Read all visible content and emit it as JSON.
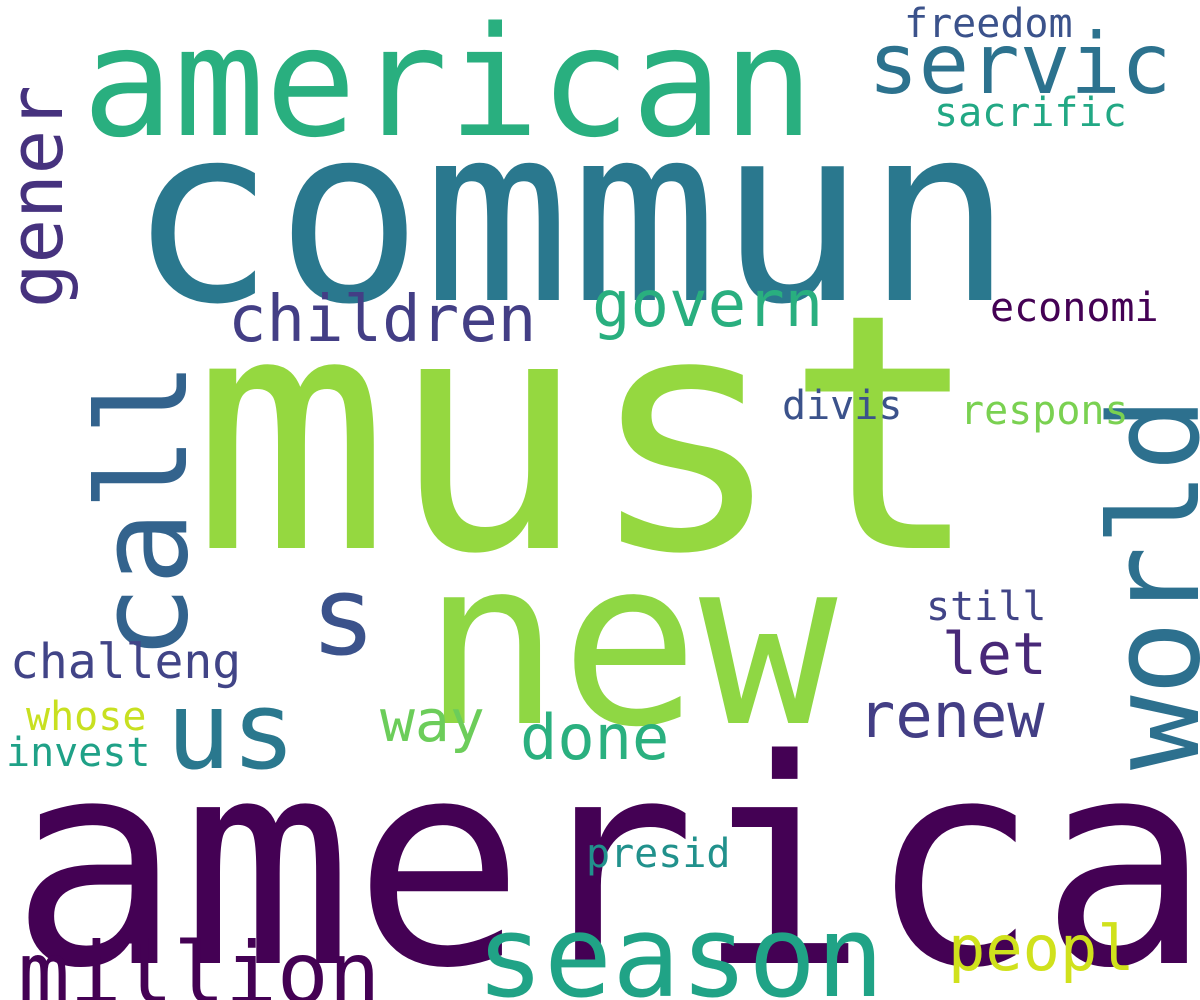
{
  "background": "#ffffff",
  "words": [
    {
      "key": "america",
      "text": "america",
      "color": "#440154",
      "orientation": "horizontal"
    },
    {
      "key": "must",
      "text": "must",
      "color": "#95d840",
      "orientation": "horizontal"
    },
    {
      "key": "commun",
      "text": "commun",
      "color": "#2a788e",
      "orientation": "horizontal"
    },
    {
      "key": "new",
      "text": "new",
      "color": "#8fd744",
      "orientation": "horizontal"
    },
    {
      "key": "american",
      "text": "american",
      "color": "#29af7f",
      "orientation": "horizontal"
    },
    {
      "key": "season",
      "text": "season",
      "color": "#20a386",
      "orientation": "horizontal"
    },
    {
      "key": "call",
      "text": "call",
      "color": "#33638d",
      "orientation": "vertical"
    },
    {
      "key": "world",
      "text": "world",
      "color": "#2d708e",
      "orientation": "vertical"
    },
    {
      "key": "million",
      "text": "million",
      "color": "#440154",
      "orientation": "horizontal"
    },
    {
      "key": "us",
      "text": "us",
      "color": "#2a788e",
      "orientation": "horizontal"
    },
    {
      "key": "s",
      "text": "s",
      "color": "#3b528b",
      "orientation": "horizontal"
    },
    {
      "key": "servic",
      "text": "servic",
      "color": "#2c728e",
      "orientation": "horizontal"
    },
    {
      "key": "gener",
      "text": "gener",
      "color": "#46327e",
      "orientation": "vertical"
    },
    {
      "key": "children",
      "text": "children",
      "color": "#433e85",
      "orientation": "horizontal"
    },
    {
      "key": "govern",
      "text": "govern",
      "color": "#29af7f",
      "orientation": "horizontal"
    },
    {
      "key": "done",
      "text": "done",
      "color": "#2ab07f",
      "orientation": "horizontal"
    },
    {
      "key": "renew",
      "text": "renew",
      "color": "#433e85",
      "orientation": "horizontal"
    },
    {
      "key": "peopl",
      "text": "peopl",
      "color": "#d0e11c",
      "orientation": "horizontal"
    },
    {
      "key": "way",
      "text": "way",
      "color": "#6ccd5a",
      "orientation": "horizontal"
    },
    {
      "key": "let",
      "text": "let",
      "color": "#482878",
      "orientation": "horizontal"
    },
    {
      "key": "challeng",
      "text": "challeng",
      "color": "#414487",
      "orientation": "horizontal"
    },
    {
      "key": "presid",
      "text": "presid",
      "color": "#21918c",
      "orientation": "horizontal"
    },
    {
      "key": "economi",
      "text": "economi",
      "color": "#440154",
      "orientation": "horizontal"
    },
    {
      "key": "respons",
      "text": "respons",
      "color": "#7ad151",
      "orientation": "horizontal"
    },
    {
      "key": "divis",
      "text": "divis",
      "color": "#3b528b",
      "orientation": "horizontal"
    },
    {
      "key": "still",
      "text": "still",
      "color": "#414487",
      "orientation": "horizontal"
    },
    {
      "key": "sacrific",
      "text": "sacrific",
      "color": "#22a884",
      "orientation": "horizontal"
    },
    {
      "key": "freedom",
      "text": "freedom",
      "color": "#3b528b",
      "orientation": "horizontal"
    },
    {
      "key": "whose",
      "text": "whose",
      "color": "#c8e020",
      "orientation": "horizontal"
    },
    {
      "key": "invest",
      "text": "invest",
      "color": "#1fa187",
      "orientation": "horizontal"
    }
  ]
}
